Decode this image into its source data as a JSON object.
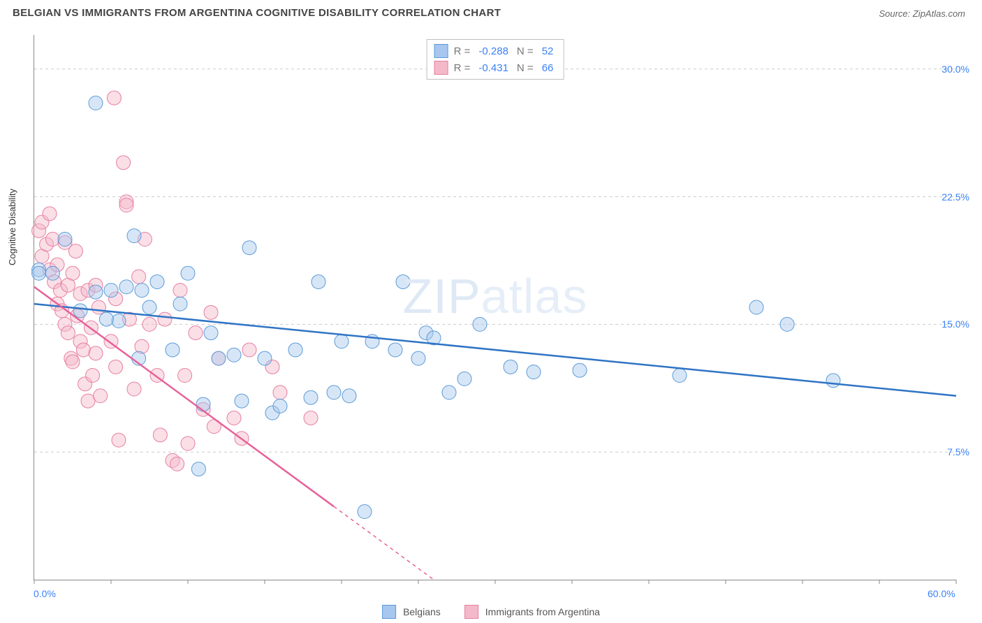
{
  "title": "BELGIAN VS IMMIGRANTS FROM ARGENTINA COGNITIVE DISABILITY CORRELATION CHART",
  "source_label": "Source: ZipAtlas.com",
  "watermark": "ZIPatlas",
  "y_axis_label": "Cognitive Disability",
  "chart": {
    "type": "scatter",
    "background_color": "#ffffff",
    "grid_color": "#cccccc",
    "axis_color": "#888888",
    "marker_radius": 10,
    "marker_opacity": 0.45,
    "xlim": [
      0,
      60
    ],
    "ylim": [
      0,
      32
    ],
    "x_ticks": [
      0,
      5,
      10,
      15,
      20,
      25,
      30,
      35,
      40,
      45,
      50,
      55,
      60
    ],
    "y_gridlines": [
      7.5,
      15.0,
      22.5,
      30.0
    ],
    "x_labels": [
      {
        "value": 0,
        "text": "0.0%"
      },
      {
        "value": 60,
        "text": "60.0%"
      }
    ],
    "y_labels": [
      {
        "value": 7.5,
        "text": "7.5%"
      },
      {
        "value": 15.0,
        "text": "15.0%"
      },
      {
        "value": 22.5,
        "text": "22.5%"
      },
      {
        "value": 30.0,
        "text": "30.0%"
      }
    ],
    "series": [
      {
        "name": "Belgians",
        "label": "Belgians",
        "fill_color": "#a7c7ee",
        "stroke_color": "#5a9bd8",
        "line_color": "#2f74c4",
        "R": "-0.288",
        "N": "52",
        "trend": {
          "x1": 0,
          "y1": 16.2,
          "x2": 60,
          "y2": 10.8
        },
        "points": [
          [
            0.3,
            18.2
          ],
          [
            0.3,
            18.0
          ],
          [
            1.2,
            18.0
          ],
          [
            2.0,
            20.0
          ],
          [
            4.0,
            28.0
          ],
          [
            5.0,
            17.0
          ],
          [
            5.5,
            15.2
          ],
          [
            6.0,
            17.2
          ],
          [
            6.5,
            20.2
          ],
          [
            7.0,
            17.0
          ],
          [
            7.5,
            16.0
          ],
          [
            8.0,
            17.5
          ],
          [
            9.0,
            13.5
          ],
          [
            10.0,
            18.0
          ],
          [
            10.7,
            6.5
          ],
          [
            11.0,
            10.3
          ],
          [
            12.0,
            13.0
          ],
          [
            13.0,
            13.2
          ],
          [
            13.5,
            10.5
          ],
          [
            14.0,
            19.5
          ],
          [
            15.0,
            13.0
          ],
          [
            15.5,
            9.8
          ],
          [
            16.0,
            10.2
          ],
          [
            17.0,
            13.5
          ],
          [
            18.0,
            10.7
          ],
          [
            18.5,
            17.5
          ],
          [
            19.5,
            11.0
          ],
          [
            20.0,
            14.0
          ],
          [
            20.5,
            10.8
          ],
          [
            21.5,
            4.0
          ],
          [
            22.0,
            14.0
          ],
          [
            23.5,
            13.5
          ],
          [
            24.0,
            17.5
          ],
          [
            25.0,
            13.0
          ],
          [
            25.5,
            14.5
          ],
          [
            27.0,
            11.0
          ],
          [
            28.0,
            11.8
          ],
          [
            29.0,
            15.0
          ],
          [
            31.0,
            12.5
          ],
          [
            32.5,
            12.2
          ],
          [
            35.5,
            12.3
          ],
          [
            42.0,
            12.0
          ],
          [
            47.0,
            16.0
          ],
          [
            49.0,
            15.0
          ],
          [
            52.0,
            11.7
          ],
          [
            3.0,
            15.8
          ],
          [
            4.0,
            16.9
          ],
          [
            4.7,
            15.3
          ],
          [
            6.8,
            13.0
          ],
          [
            9.5,
            16.2
          ],
          [
            11.5,
            14.5
          ],
          [
            26.0,
            14.2
          ]
        ]
      },
      {
        "name": "Immigrants from Argentina",
        "label": "Immigrants from Argentina",
        "fill_color": "#f4b9c9",
        "stroke_color": "#e77ea0",
        "line_color": "#e76298",
        "R": "-0.431",
        "N": "66",
        "trend": {
          "x1": 0,
          "y1": 17.2,
          "x2": 26,
          "y2": 0
        },
        "points": [
          [
            0.3,
            20.5
          ],
          [
            0.5,
            21.0
          ],
          [
            0.5,
            19.0
          ],
          [
            0.8,
            19.7
          ],
          [
            1.0,
            21.5
          ],
          [
            1.0,
            18.2
          ],
          [
            1.2,
            20.0
          ],
          [
            1.3,
            17.5
          ],
          [
            1.5,
            18.5
          ],
          [
            1.5,
            16.2
          ],
          [
            1.7,
            17.0
          ],
          [
            1.8,
            15.8
          ],
          [
            2.0,
            19.8
          ],
          [
            2.0,
            15.0
          ],
          [
            2.2,
            14.5
          ],
          [
            2.2,
            17.3
          ],
          [
            2.4,
            13.0
          ],
          [
            2.5,
            18.0
          ],
          [
            2.5,
            12.8
          ],
          [
            2.7,
            19.3
          ],
          [
            2.8,
            15.5
          ],
          [
            3.0,
            14.0
          ],
          [
            3.0,
            16.8
          ],
          [
            3.2,
            13.5
          ],
          [
            3.3,
            11.5
          ],
          [
            3.5,
            17.0
          ],
          [
            3.5,
            10.5
          ],
          [
            3.7,
            14.8
          ],
          [
            3.8,
            12.0
          ],
          [
            4.0,
            17.3
          ],
          [
            4.0,
            13.3
          ],
          [
            4.2,
            16.0
          ],
          [
            4.3,
            10.8
          ],
          [
            5.0,
            14.0
          ],
          [
            5.2,
            28.3
          ],
          [
            5.3,
            16.5
          ],
          [
            5.3,
            12.5
          ],
          [
            5.5,
            8.2
          ],
          [
            5.8,
            24.5
          ],
          [
            6.0,
            22.2
          ],
          [
            6.0,
            22.0
          ],
          [
            6.2,
            15.3
          ],
          [
            6.5,
            11.2
          ],
          [
            6.8,
            17.8
          ],
          [
            7.0,
            13.7
          ],
          [
            7.2,
            20.0
          ],
          [
            7.5,
            15.0
          ],
          [
            8.0,
            12.0
          ],
          [
            8.2,
            8.5
          ],
          [
            8.5,
            15.3
          ],
          [
            9.0,
            7.0
          ],
          [
            9.3,
            6.8
          ],
          [
            9.5,
            17.0
          ],
          [
            9.8,
            12.0
          ],
          [
            10.0,
            8.0
          ],
          [
            10.5,
            14.5
          ],
          [
            11.0,
            10.0
          ],
          [
            11.5,
            15.7
          ],
          [
            11.7,
            9.0
          ],
          [
            12.0,
            13.0
          ],
          [
            13.0,
            9.5
          ],
          [
            13.5,
            8.3
          ],
          [
            14.0,
            13.5
          ],
          [
            15.5,
            12.5
          ],
          [
            16.0,
            11.0
          ],
          [
            18.0,
            9.5
          ]
        ]
      }
    ]
  },
  "correlation_labels": {
    "R": "R =",
    "N": "N ="
  },
  "legend_bottom": [
    {
      "swatch_fill": "#a7c7ee",
      "swatch_stroke": "#5a9bd8",
      "label_key": 0
    },
    {
      "swatch_fill": "#f4b9c9",
      "swatch_stroke": "#e77ea0",
      "label_key": 1
    }
  ]
}
